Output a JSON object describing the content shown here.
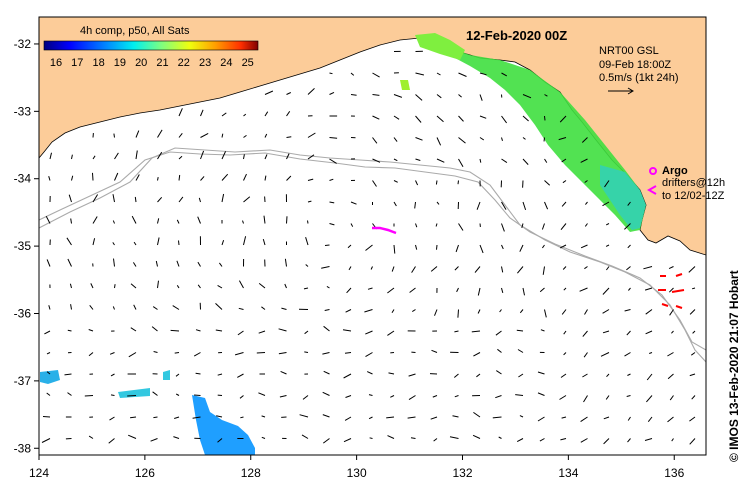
{
  "map": {
    "date_title": "12-Feb-2020 00Z",
    "colorbar": {
      "title": "4h comp, p50, All Sats",
      "ticks": [
        "16",
        "17",
        "18",
        "19",
        "20",
        "21",
        "22",
        "23",
        "24",
        "25"
      ],
      "colors": [
        "#00008f",
        "#0000ff",
        "#006fff",
        "#00dfff",
        "#4fffaf",
        "#bfff3f",
        "#ffcf00",
        "#ff5f00",
        "#df0000",
        "#7f0000"
      ]
    },
    "legend": {
      "product": "NRT00 GSL",
      "product_time": "09-Feb 18:00Z",
      "vector_scale": "0.5m/s (1kt 24h)"
    },
    "argo": {
      "label": "Argo",
      "drifters": "drifters@12h",
      "drifters_until": "to 12/02-12Z"
    },
    "credit": "© IMOS 13-Feb-2020 21:07 Hobart",
    "axes": {
      "x_ticks": [
        "124",
        "126",
        "128",
        "130",
        "132",
        "134",
        "136"
      ],
      "y_ticks": [
        "-32",
        "-33",
        "-34",
        "-35",
        "-36",
        "-37",
        "-38"
      ],
      "xlim": [
        124,
        136.6
      ],
      "ylim": [
        -38.1,
        -31.6
      ]
    },
    "colors": {
      "land": "#fccc99",
      "drifter": "#ff0000",
      "argo_marker": "#ff00ff",
      "bathymetry": "#aaaaaa"
    }
  }
}
